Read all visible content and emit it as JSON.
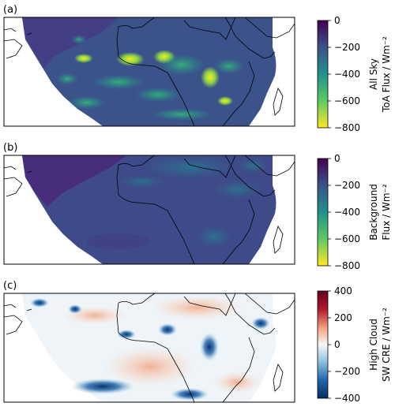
{
  "chart_data": [
    {
      "type": "heatmap",
      "panel_label": "(a)",
      "colorbar_label_lines": [
        "All Sky",
        "ToA Flux / Wm⁻²"
      ],
      "colorbar_ticks": [
        "0",
        "−200",
        "−400",
        "−600",
        "−800"
      ],
      "colorbar_tick_values": [
        0,
        -200,
        -400,
        -600,
        -800
      ],
      "vmin": -800,
      "vmax": 0,
      "colormap": "viridis",
      "colorbar_stops": [
        "#fde725",
        "#5ec962",
        "#21918c",
        "#3b528b",
        "#440154"
      ],
      "field_mean": -220,
      "field_range": [
        -800,
        -100
      ],
      "grid": false
    },
    {
      "type": "heatmap",
      "panel_label": "(b)",
      "colorbar_label_lines": [
        "Background",
        "Flux / Wm⁻²"
      ],
      "colorbar_ticks": [
        "0",
        "−200",
        "−400",
        "−600",
        "−800"
      ],
      "colorbar_tick_values": [
        0,
        -200,
        -400,
        -600,
        -800
      ],
      "vmin": -800,
      "vmax": 0,
      "colormap": "viridis",
      "colorbar_stops": [
        "#fde725",
        "#5ec962",
        "#21918c",
        "#3b528b",
        "#440154"
      ],
      "field_mean": -230,
      "field_range": [
        -450,
        -120
      ],
      "grid": false
    },
    {
      "type": "heatmap",
      "panel_label": "(c)",
      "colorbar_label_lines": [
        "High Cloud",
        "SW CRE / Wm⁻²"
      ],
      "colorbar_ticks": [
        "400",
        "200",
        "0",
        "−200",
        "−400"
      ],
      "colorbar_tick_values": [
        400,
        200,
        0,
        -200,
        -400
      ],
      "vmin": -400,
      "vmax": 400,
      "colormap": "RdBu_r",
      "colorbar_stops": [
        "#053061",
        "#2166ac",
        "#92c5de",
        "#f7f7f7",
        "#f4a582",
        "#b2182b",
        "#67001f"
      ],
      "field_range": [
        -400,
        150
      ],
      "grid": false
    }
  ]
}
